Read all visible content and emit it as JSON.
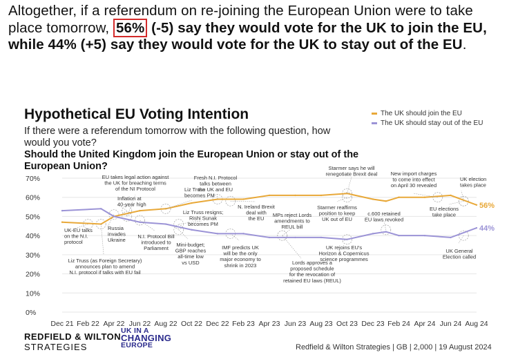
{
  "headline": {
    "part1": "Altogether, if a referendum on re-joining the European Union were to take place tomorrow, ",
    "highlight": "56%",
    "part2": " (-5) say they would vote for the UK to join the EU, while 44% (+5) say they would vote for the UK to stay out of the EU",
    "part3": "."
  },
  "chart": {
    "title": "Hypothetical EU Voting Intention",
    "subtitle": "If there were a referendum tomorrow with the following question, how would you vote?",
    "question": "Should the United Kingdom join the European Union or stay out of the European Union?"
  },
  "legend": [
    {
      "label": "The UK should join the EU",
      "color": "#e8a838"
    },
    {
      "label": "The UK should stay out of the EU",
      "color": "#9b93d6"
    }
  ],
  "chart_data": {
    "type": "line",
    "x_labels": [
      "Dec 21",
      "Feb 22",
      "Apr 22",
      "Jun 22",
      "Aug 22",
      "Oct 22",
      "Dec 22",
      "Feb 23",
      "Apr 23",
      "Jun 23",
      "Aug 23",
      "Oct 23",
      "Dec 23",
      "Feb 24",
      "Apr 24",
      "Jun 24",
      "Aug 24"
    ],
    "y_ticks": [
      "0%",
      "10%",
      "20%",
      "30%",
      "40%",
      "50%",
      "60%",
      "70%"
    ],
    "ylim": [
      0,
      70
    ],
    "xlim": [
      0,
      32
    ],
    "series": [
      {
        "name": "The UK should join the EU",
        "color": "#e8a838",
        "x": [
          0,
          3,
          4,
          6,
          8,
          10,
          12,
          14,
          16,
          18,
          20,
          22,
          24,
          25,
          26,
          28,
          30,
          32
        ],
        "values": [
          47,
          46,
          50,
          53,
          54,
          57,
          59,
          59,
          61,
          61,
          61,
          62,
          59,
          58,
          60,
          60,
          61,
          56
        ],
        "end_label": "56%"
      },
      {
        "name": "The UK should stay out of the EU",
        "color": "#9b93d6",
        "x": [
          0,
          3,
          4,
          6,
          8,
          10,
          12,
          14,
          16,
          18,
          20,
          22,
          24,
          25,
          26,
          28,
          30,
          32
        ],
        "values": [
          53,
          54,
          50,
          47,
          46,
          43,
          41,
          41,
          39,
          39,
          39,
          38,
          41,
          42,
          40,
          40,
          39,
          44
        ],
        "end_label": "44%"
      }
    ],
    "annotations": [
      {
        "x": 2,
        "y": 46,
        "text": [
          "UK-EU talks",
          "on the N.I.",
          "protocol"
        ]
      },
      {
        "x": 3,
        "y": 46,
        "text": [
          "Liz Truss (as Foreign Secretary)",
          "announces plan to amend",
          "N.I. protocol if talks with EU fail"
        ]
      },
      {
        "x": 4,
        "y": 51,
        "text": [
          "Russia",
          "invades",
          "Ukraine"
        ]
      },
      {
        "x": 5,
        "y": 53,
        "text": [
          "Inflation at",
          "40-year high"
        ]
      },
      {
        "x": 5,
        "y": 50,
        "text": [
          "EU takes legal action against",
          "the UK for breaching terms",
          "of the NI Protocol"
        ]
      },
      {
        "x": 6,
        "y": 48,
        "text": [
          "N.I. Protocol Bill",
          "introduced to",
          "Parliament"
        ]
      },
      {
        "x": 8,
        "y": 54,
        "text": [
          "Liz Truss",
          "becomes PM"
        ]
      },
      {
        "x": 9,
        "y": 46,
        "text": [
          "Liz Truss resigns;",
          "Rishi Sunak",
          "becomes PM"
        ]
      },
      {
        "x": 9,
        "y": 43,
        "text": [
          "Mini-budget;",
          "GBP reaches",
          "all-time low",
          "vs USD"
        ]
      },
      {
        "x": 12,
        "y": 59,
        "text": [
          "Fresh N.I. Protocol",
          "talks between",
          "the UK and EU"
        ]
      },
      {
        "x": 13,
        "y": 41,
        "text": [
          "IMF predicts UK",
          "will be the only",
          "major economy to",
          "shrink in 2023"
        ]
      },
      {
        "x": 13,
        "y": 58,
        "text": [
          "N. Ireland Brexit",
          "deal with",
          "the EU"
        ]
      },
      {
        "x": 17,
        "y": 40,
        "text": [
          "MPs reject Lords",
          "amendments to",
          "REUL bill"
        ]
      },
      {
        "x": 17,
        "y": 40,
        "text": [
          "Lords approves a",
          "proposed schedule",
          "for the revocation of",
          "retained EU laws (REUL)"
        ]
      },
      {
        "x": 22,
        "y": 62,
        "text": [
          "Starmer says he will",
          "renegotiate Brexit deal"
        ]
      },
      {
        "x": 22,
        "y": 60,
        "text": [
          "Starmer reaffirms",
          "position to keep",
          "UK out of EU"
        ]
      },
      {
        "x": 22,
        "y": 38,
        "text": [
          "UK rejoins EU's",
          "Horizon & Copernicus",
          "science programmes"
        ]
      },
      {
        "x": 25,
        "y": 43,
        "text": [
          "c.600 retained",
          "EU laws revoked"
        ]
      },
      {
        "x": 29,
        "y": 60,
        "text": [
          "New import charges",
          "to come into effect",
          "on April 30 revealed"
        ]
      },
      {
        "x": 31,
        "y": 58,
        "text": [
          "UK election",
          "takes place"
        ]
      },
      {
        "x": 31,
        "y": 58,
        "text": [
          "EU elections",
          "take place"
        ]
      },
      {
        "x": 31,
        "y": 40,
        "text": [
          "UK General",
          "Election called"
        ]
      }
    ]
  },
  "footer": {
    "brand_line1": "REDFIELD & WILTON",
    "brand_line2": "STRATEGIES",
    "partner_line1": "UK IN A",
    "partner_line2": "CHANGING",
    "partner_line3": "EUROPE",
    "source": "Redfield & Wilton Strategies | GB | 2,000 | 19 August 2024"
  }
}
